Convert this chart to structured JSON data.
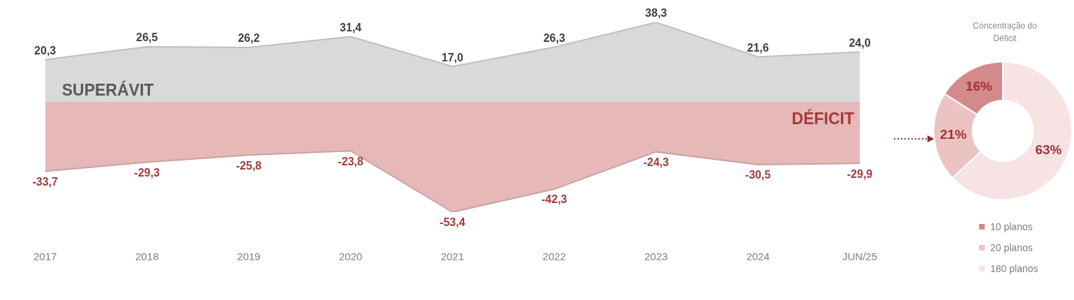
{
  "chart_data": [
    {
      "type": "area",
      "categories": [
        "2017",
        "2018",
        "2019",
        "2020",
        "2021",
        "2022",
        "2023",
        "2024",
        "JUN/25"
      ],
      "data_labels": true,
      "legend": false,
      "series": [
        {
          "name": "SUPERÁVIT",
          "color": "#d9d9d9",
          "values": [
            20.3,
            26.5,
            26.2,
            31.4,
            17.0,
            26.3,
            38.3,
            21.6,
            24.0
          ],
          "value_labels": [
            "20,3",
            "26,5",
            "26,2",
            "31,4",
            "17,0",
            "26,3",
            "38,3",
            "21,6",
            "24,0"
          ]
        },
        {
          "name": "DÉFICIT",
          "color": "#e6b8b8",
          "values": [
            -33.7,
            -29.3,
            -25.8,
            -23.8,
            -53.4,
            -42.3,
            -24.3,
            -30.5,
            -29.9
          ],
          "value_labels": [
            "-33,7",
            "-29,3",
            "-25,8",
            "-23,8",
            "-53,4",
            "-42,3",
            "-24,3",
            "-30,5",
            "-29,9"
          ]
        }
      ]
    },
    {
      "type": "donut",
      "title": "Concentração do Déficit",
      "categories": [
        "10 planos",
        "20 planos",
        "180 planos"
      ],
      "values": [
        16,
        21,
        63
      ],
      "value_labels": [
        "16%",
        "21%",
        "63%"
      ],
      "colors": [
        "#d48a8a",
        "#ebc3c3",
        "#f7e3e3"
      ],
      "legend": "bottom"
    }
  ]
}
